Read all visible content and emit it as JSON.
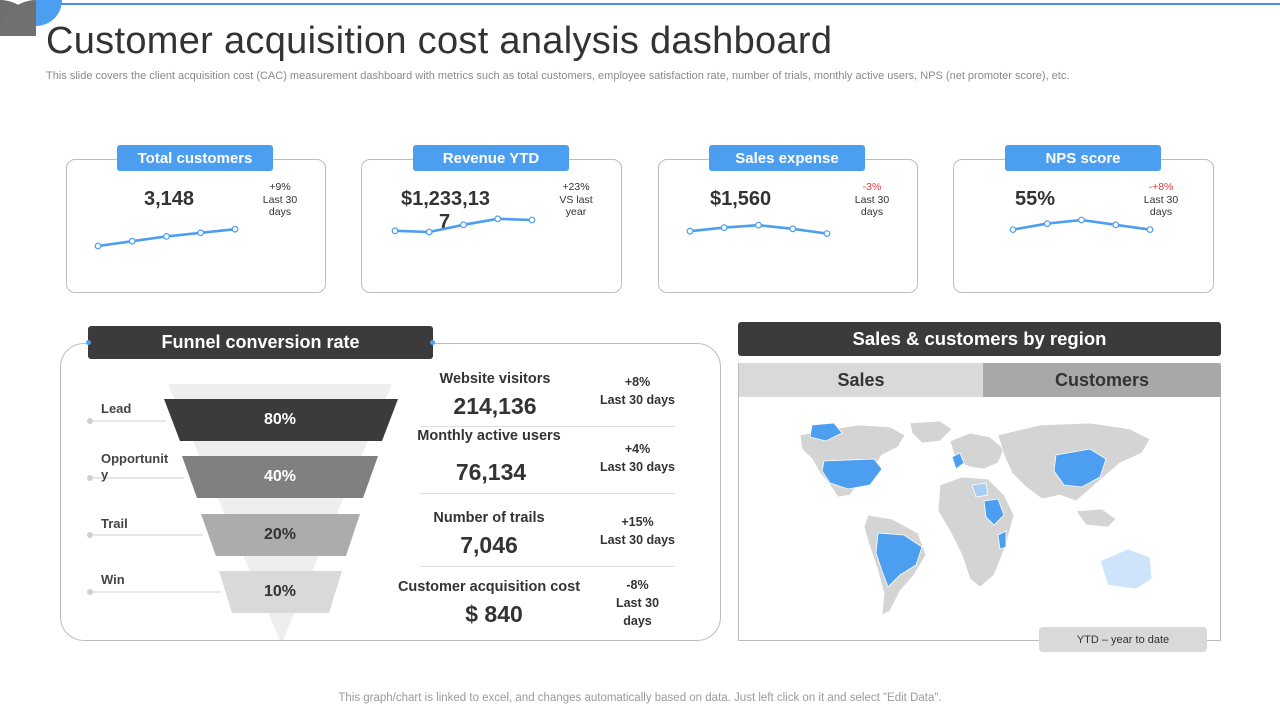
{
  "header": {
    "title": "Customer acquisition cost analysis dashboard",
    "subtitle": "This slide covers the client acquisition cost (CAC) measurement dashboard with metrics such as total customers, employee satisfaction rate, number of trials, monthly active users, NPS (net promoter score), etc."
  },
  "kpis": [
    {
      "label": "Total customers",
      "value": "3,148",
      "change": "+9%",
      "period_1": "Last 30",
      "period_2": "days",
      "trend": [
        10,
        18,
        26,
        32,
        38
      ]
    },
    {
      "label": "Revenue YTD",
      "value_1": "$1,233,13",
      "value_2": "7",
      "change": "+23%",
      "period_1": "VS last",
      "period_2": "year",
      "trend": [
        22,
        20,
        32,
        42,
        40
      ]
    },
    {
      "label": "Sales expense",
      "value": "$1,560",
      "change": "-3%",
      "period_1": "Last 30",
      "period_2": "days",
      "trend": [
        28,
        34,
        38,
        32,
        24
      ]
    },
    {
      "label": "NPS score",
      "value": "55%",
      "change": "-+8%",
      "period_1": "Last 30",
      "period_2": "days",
      "trend": [
        24,
        34,
        40,
        32,
        24
      ]
    }
  ],
  "funnel": {
    "title": "Funnel conversion rate",
    "stages": [
      {
        "label": "Lead",
        "pct": "80%"
      },
      {
        "label": "Opportunit",
        "label_2": "y",
        "pct": "40%"
      },
      {
        "label": "Trail",
        "pct": "20%"
      },
      {
        "label": "Win",
        "pct": "10%"
      }
    ],
    "metrics": [
      {
        "label": "Website visitors",
        "value": "214,136",
        "change": "+8%",
        "period": "Last 30 days"
      },
      {
        "label": "Monthly active users",
        "value": "76,134",
        "change": "+4%",
        "period": "Last 30 days"
      },
      {
        "label": "Number of trails",
        "value": "7,046",
        "change": "+15%",
        "period": "Last 30 days"
      },
      {
        "label": "Customer acquisition cost",
        "value": "$ 840",
        "change": "-8%",
        "period_1": "Last 30",
        "period_2": "days"
      }
    ]
  },
  "region": {
    "title": "Sales & customers by region",
    "tabs": [
      "Sales",
      "Customers"
    ],
    "note": "YTD – year to date"
  },
  "footer": "This graph/chart is linked to excel,  and changes automatically based on data. Just left click on it and select \"Edit Data\".",
  "colors": {
    "accent": "#4b9ef0",
    "dark": "#3b3b3b",
    "negative": "#e53935",
    "map_grey": "#d4d4d4",
    "map_light_blue": "#cde4fb"
  }
}
